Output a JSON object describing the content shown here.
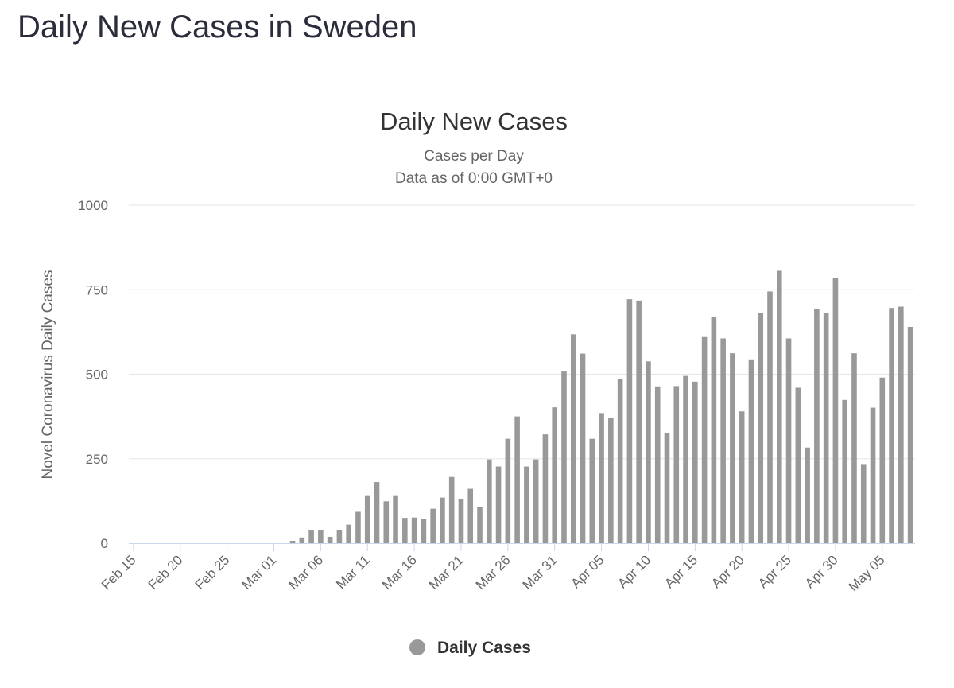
{
  "page": {
    "title": "Daily New Cases in Sweden"
  },
  "colors": {
    "bar": "#999999",
    "text": "#333333",
    "subtext": "#666666",
    "grid": "#e6e6e6"
  },
  "chart_data": {
    "type": "bar",
    "title": "Daily New Cases",
    "subtitle_lines": [
      "Cases per Day",
      "Data as of 0:00 GMT+0"
    ],
    "xlabel": "",
    "ylabel": "Novel Coronavirus Daily Cases",
    "ylim": [
      0,
      1000
    ],
    "yticks": [
      0,
      250,
      500,
      750,
      1000
    ],
    "grid": true,
    "legend": {
      "position": "bottom-center",
      "entries": [
        "Daily Cases"
      ]
    },
    "x_tick_labels": [
      "Feb 15",
      "Feb 20",
      "Feb 25",
      "Mar 01",
      "Mar 06",
      "Mar 11",
      "Mar 16",
      "Mar 21",
      "Mar 26",
      "Mar 31",
      "Apr 05",
      "Apr 10",
      "Apr 15",
      "Apr 20",
      "Apr 25",
      "Apr 30",
      "May 05"
    ],
    "x_tick_every": 5,
    "categories": [
      "Feb 15",
      "Feb 16",
      "Feb 17",
      "Feb 18",
      "Feb 19",
      "Feb 20",
      "Feb 21",
      "Feb 22",
      "Feb 23",
      "Feb 24",
      "Feb 25",
      "Feb 26",
      "Feb 27",
      "Feb 28",
      "Feb 29",
      "Mar 01",
      "Mar 02",
      "Mar 03",
      "Mar 04",
      "Mar 05",
      "Mar 06",
      "Mar 07",
      "Mar 08",
      "Mar 09",
      "Mar 10",
      "Mar 11",
      "Mar 12",
      "Mar 13",
      "Mar 14",
      "Mar 15",
      "Mar 16",
      "Mar 17",
      "Mar 18",
      "Mar 19",
      "Mar 20",
      "Mar 21",
      "Mar 22",
      "Mar 23",
      "Mar 24",
      "Mar 25",
      "Mar 26",
      "Mar 27",
      "Mar 28",
      "Mar 29",
      "Mar 30",
      "Mar 31",
      "Apr 01",
      "Apr 02",
      "Apr 03",
      "Apr 04",
      "Apr 05",
      "Apr 06",
      "Apr 07",
      "Apr 08",
      "Apr 09",
      "Apr 10",
      "Apr 11",
      "Apr 12",
      "Apr 13",
      "Apr 14",
      "Apr 15",
      "Apr 16",
      "Apr 17",
      "Apr 18",
      "Apr 19",
      "Apr 20",
      "Apr 21",
      "Apr 22",
      "Apr 23",
      "Apr 24",
      "Apr 25",
      "Apr 26",
      "Apr 27",
      "Apr 28",
      "Apr 29",
      "Apr 30",
      "May 01",
      "May 02",
      "May 03",
      "May 04",
      "May 05",
      "May 06",
      "May 07",
      "May 08"
    ],
    "series": [
      {
        "name": "Daily Cases",
        "values": [
          0,
          0,
          0,
          0,
          0,
          0,
          0,
          0,
          0,
          0,
          0,
          0,
          0,
          0,
          0,
          0,
          0,
          7,
          17,
          40,
          40,
          19,
          40,
          55,
          93,
          142,
          181,
          124,
          142,
          75,
          76,
          71,
          102,
          135,
          196,
          130,
          161,
          106,
          248,
          227,
          309,
          375,
          227,
          248,
          322,
          402,
          508,
          618,
          561,
          309,
          385,
          371,
          487,
          722,
          718,
          538,
          464,
          325,
          465,
          495,
          478,
          610,
          670,
          606,
          562,
          390,
          544,
          680,
          745,
          806,
          606,
          460,
          283,
          692,
          680,
          785,
          424,
          562,
          232,
          401,
          490,
          696,
          700,
          640
        ]
      }
    ]
  }
}
